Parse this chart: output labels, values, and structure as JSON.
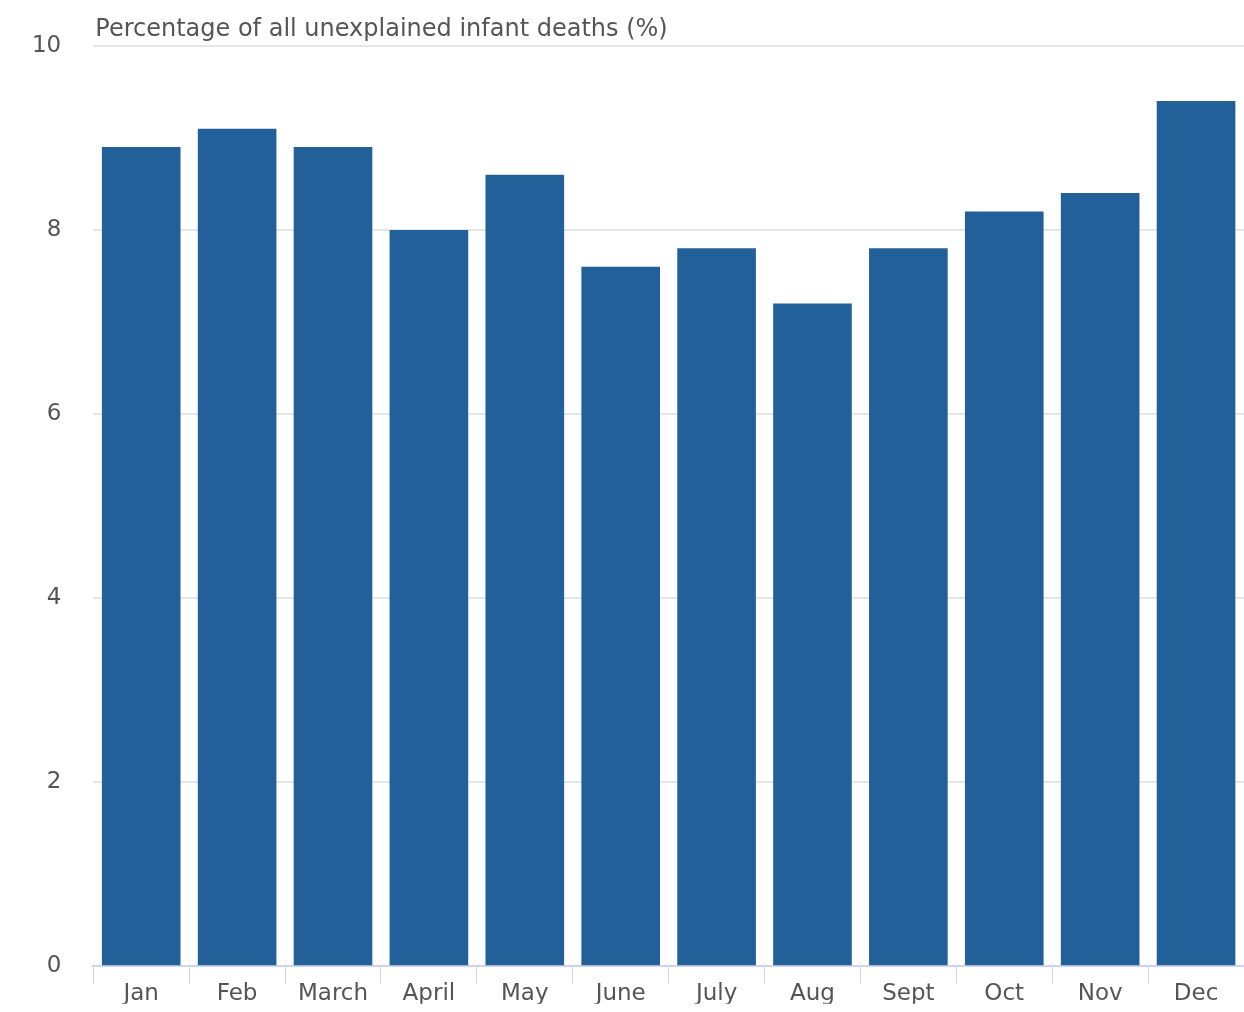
{
  "chart_data": {
    "type": "bar",
    "ylabel": "Percentage of all unexplained infant deaths (%)",
    "categories": [
      "Jan",
      "Feb",
      "March",
      "April",
      "May",
      "June",
      "July",
      "Aug",
      "Sept",
      "Oct",
      "Nov",
      "Dec"
    ],
    "values": [
      8.9,
      9.1,
      8.9,
      8.0,
      8.6,
      7.6,
      7.8,
      7.2,
      7.8,
      8.2,
      8.4,
      9.4
    ],
    "color": "#22609a",
    "ylim": [
      0,
      10
    ],
    "yticks": [
      0,
      2,
      4,
      6,
      8,
      10
    ],
    "grid": "y",
    "legend": false
  }
}
